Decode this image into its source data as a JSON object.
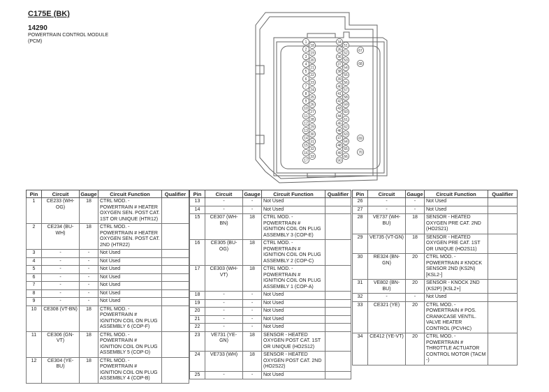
{
  "header": {
    "connector_id": "C175E (BK)",
    "part_number": "14290",
    "description_line1": "POWERTRAIN CONTROL MODULE",
    "description_line2": "(PCM)"
  },
  "connector": {
    "left_col_a": [
      1,
      2,
      3,
      4,
      5,
      6,
      7,
      8,
      9,
      10,
      11,
      12,
      13,
      14,
      15,
      16,
      17
    ],
    "left_col_b": [
      18,
      19,
      20,
      21,
      22,
      23,
      24,
      25,
      26,
      27,
      28,
      29,
      30,
      31,
      32,
      33
    ],
    "right_col_a": [
      34,
      35,
      36,
      37,
      38,
      39,
      40,
      41,
      42,
      43,
      44,
      45,
      46,
      47,
      48,
      49,
      50
    ],
    "right_col_b": [
      51,
      52,
      53,
      54,
      55,
      56,
      57,
      58,
      59,
      60,
      61,
      62,
      63,
      64,
      65,
      66
    ],
    "extra_top": [
      67,
      68
    ],
    "extra_bottom": [
      69,
      70
    ]
  },
  "columns": [
    "Pin",
    "Circuit",
    "Gauge",
    "Circuit Function",
    "Qualifier"
  ],
  "tables": [
    [
      {
        "pin": "1",
        "circuit": "CE233 (WH-OG)",
        "gauge": "18",
        "function": "CTRL MOD. - POWERTRAIN # HEATER OXYGEN SEN. POST CAT. 1ST OR UNIQUE (HTR12)",
        "qualifier": ""
      },
      {
        "pin": "2",
        "circuit": "CE234 (BU-WH)",
        "gauge": "18",
        "function": "CTRL MOD. - POWERTRAIN # HEATER OXYGEN SEN. POST CAT. 2ND (HTR22)",
        "qualifier": ""
      },
      {
        "pin": "3",
        "circuit": "-",
        "gauge": "-",
        "function": "Not Used",
        "qualifier": ""
      },
      {
        "pin": "4",
        "circuit": "-",
        "gauge": "-",
        "function": "Not Used",
        "qualifier": ""
      },
      {
        "pin": "5",
        "circuit": "-",
        "gauge": "-",
        "function": "Not Used",
        "qualifier": ""
      },
      {
        "pin": "6",
        "circuit": "-",
        "gauge": "-",
        "function": "Not Used",
        "qualifier": ""
      },
      {
        "pin": "7",
        "circuit": "-",
        "gauge": "-",
        "function": "Not Used",
        "qualifier": ""
      },
      {
        "pin": "8",
        "circuit": "-",
        "gauge": "-",
        "function": "Not Used",
        "qualifier": ""
      },
      {
        "pin": "9",
        "circuit": "-",
        "gauge": "-",
        "function": "Not Used",
        "qualifier": ""
      },
      {
        "pin": "10",
        "circuit": "CE308 (VT-BN)",
        "gauge": "18",
        "function": "CTRL MOD. - POWERTRAIN # IGNITION COIL ON PLUG ASSEMBLY 6 (COP-F)",
        "qualifier": ""
      },
      {
        "pin": "11",
        "circuit": "CE306 (GN-VT)",
        "gauge": "18",
        "function": "CTRL MOD. - POWERTRAIN # IGNITION COIL ON PLUG ASSEMBLY 5 (COP-D)",
        "qualifier": ""
      },
      {
        "pin": "12",
        "circuit": "CE304 (YE-BU)",
        "gauge": "18",
        "function": "CTRL MOD. - POWERTRAIN # IGNITION COIL ON PLUG ASSEMBLY 4 (COP-B)",
        "qualifier": ""
      }
    ],
    [
      {
        "pin": "13",
        "circuit": "-",
        "gauge": "-",
        "function": "Not Used",
        "qualifier": ""
      },
      {
        "pin": "14",
        "circuit": "-",
        "gauge": "-",
        "function": "Not Used",
        "qualifier": ""
      },
      {
        "pin": "15",
        "circuit": "CE307 (WH-BN)",
        "gauge": "18",
        "function": "CTRL MOD. - POWERTRAIN # IGNITION COIL ON PLUG ASSEMBLY 3 (COP-E)",
        "qualifier": ""
      },
      {
        "pin": "16",
        "circuit": "CE305 (BU-OG)",
        "gauge": "18",
        "function": "CTRL MOD. - POWERTRAIN # IGNITION COIL ON PLUG ASSEMBLY 2 (COP-C)",
        "qualifier": ""
      },
      {
        "pin": "17",
        "circuit": "CE303 (WH-VT)",
        "gauge": "18",
        "function": "CTRL MOD. - POWERTRAIN # IGNITION COIL ON PLUG ASSEMBLY 1 (COP-A)",
        "qualifier": ""
      },
      {
        "pin": "18",
        "circuit": "-",
        "gauge": "-",
        "function": "Not Used",
        "qualifier": ""
      },
      {
        "pin": "19",
        "circuit": "-",
        "gauge": "-",
        "function": "Not Used",
        "qualifier": ""
      },
      {
        "pin": "20",
        "circuit": "-",
        "gauge": "-",
        "function": "Not Used",
        "qualifier": ""
      },
      {
        "pin": "21",
        "circuit": "-",
        "gauge": "-",
        "function": "Not Used",
        "qualifier": ""
      },
      {
        "pin": "22",
        "circuit": "-",
        "gauge": "-",
        "function": "Not Used",
        "qualifier": ""
      },
      {
        "pin": "23",
        "circuit": "VE731 (YE-GN)",
        "gauge": "18",
        "function": "SENSOR - HEATED OXYGEN POST CAT. 1ST OR UNIQUE (HO2S12)",
        "qualifier": ""
      },
      {
        "pin": "24",
        "circuit": "VE733 (WH)",
        "gauge": "18",
        "function": "SENSOR - HEATED OXYGEN POST CAT. 2ND (HO2S22)",
        "qualifier": ""
      },
      {
        "pin": "25",
        "circuit": "-",
        "gauge": "-",
        "function": "Not Used",
        "qualifier": ""
      }
    ],
    [
      {
        "pin": "26",
        "circuit": "-",
        "gauge": "-",
        "function": "Not Used",
        "qualifier": ""
      },
      {
        "pin": "27",
        "circuit": "-",
        "gauge": "-",
        "function": "Not Used",
        "qualifier": ""
      },
      {
        "pin": "28",
        "circuit": "VE737 (WH-BU)",
        "gauge": "18",
        "function": "SENSOR - HEATED OXYGEN PRE CAT. 2ND (HO2S21)",
        "qualifier": ""
      },
      {
        "pin": "29",
        "circuit": "VE735 (VT-GN)",
        "gauge": "18",
        "function": "SENSOR - HEATED OXYGEN PRE CAT. 1ST OR UNIQUE (HO2S11)",
        "qualifier": ""
      },
      {
        "pin": "30",
        "circuit": "RE324 (BN-GN)",
        "gauge": "20",
        "function": "CTRL MOD. - POWERTRAIN # KNOCK SENSOR 2ND (KS2N) [KSL2-]",
        "qualifier": ""
      },
      {
        "pin": "31",
        "circuit": "VE802 (BN-BU)",
        "gauge": "20",
        "function": "SENSOR - KNOCK 2ND (KS2P) [KSL2+]",
        "qualifier": ""
      },
      {
        "pin": "32",
        "circuit": "-",
        "gauge": "-",
        "function": "Not Used",
        "qualifier": ""
      },
      {
        "pin": "33",
        "circuit": "CE321 (YE)",
        "gauge": "20",
        "function": "CTRL MOD. - POWERTRAIN # POS. CRANKCASE VENTIL. VALVE HEATER CONTROL (PCVHC)",
        "qualifier": ""
      },
      {
        "pin": "34",
        "circuit": "CE412 (YE-VT)",
        "gauge": "20",
        "function": "CTRL MOD. - POWERTRAIN # THROTTLE ACTUATOR CONTROL MOTOR (TACM -)",
        "qualifier": ""
      }
    ]
  ]
}
